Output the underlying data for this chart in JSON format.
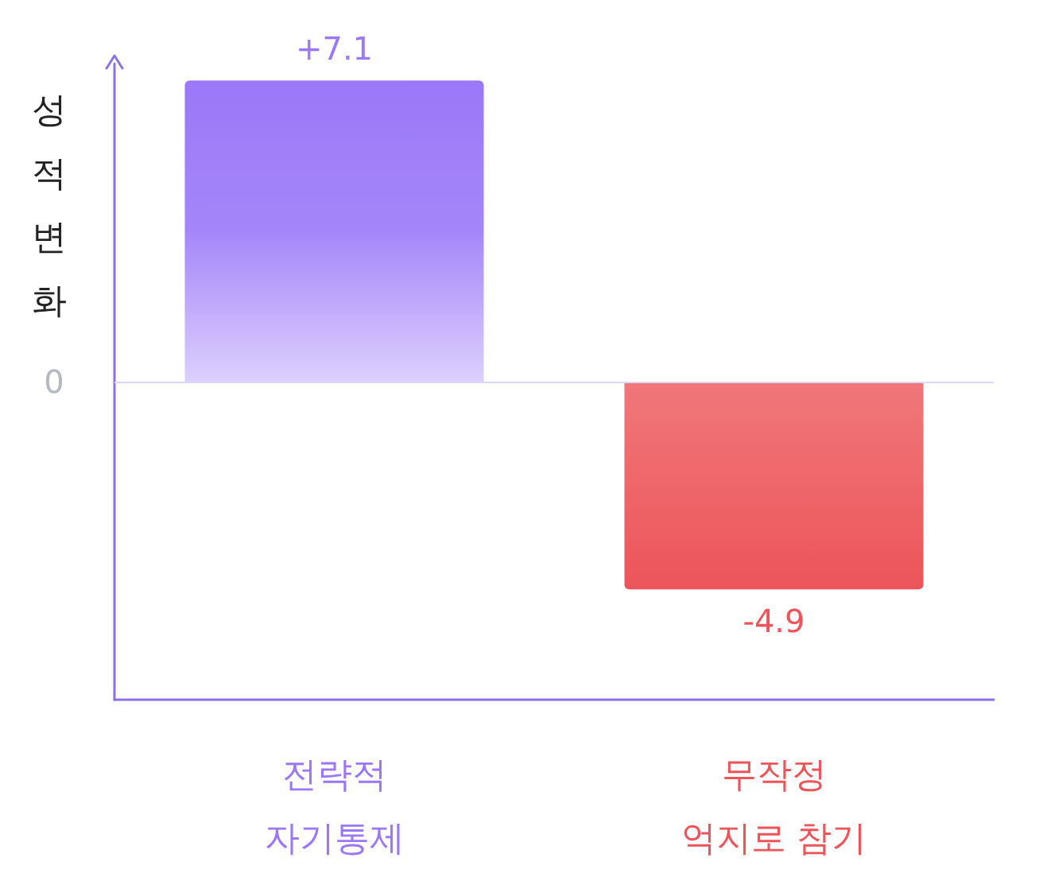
{
  "chart_data": {
    "type": "bar",
    "ylabel": "성적변화",
    "categories": [
      "전략적\n자기통제",
      "무작정\n억지로 참기"
    ],
    "values": [
      7.1,
      -4.9
    ],
    "colors": [
      "#9b78f8",
      "#ec5559"
    ],
    "value_labels": [
      "+7.1",
      "-4.9"
    ],
    "ylim": [
      -7.5,
      7.5
    ],
    "annotations": [
      "0"
    ],
    "ref_lines": [
      {
        "axis": "y",
        "value": 0,
        "color": "#ddd6fb"
      }
    ],
    "grid": false
  }
}
